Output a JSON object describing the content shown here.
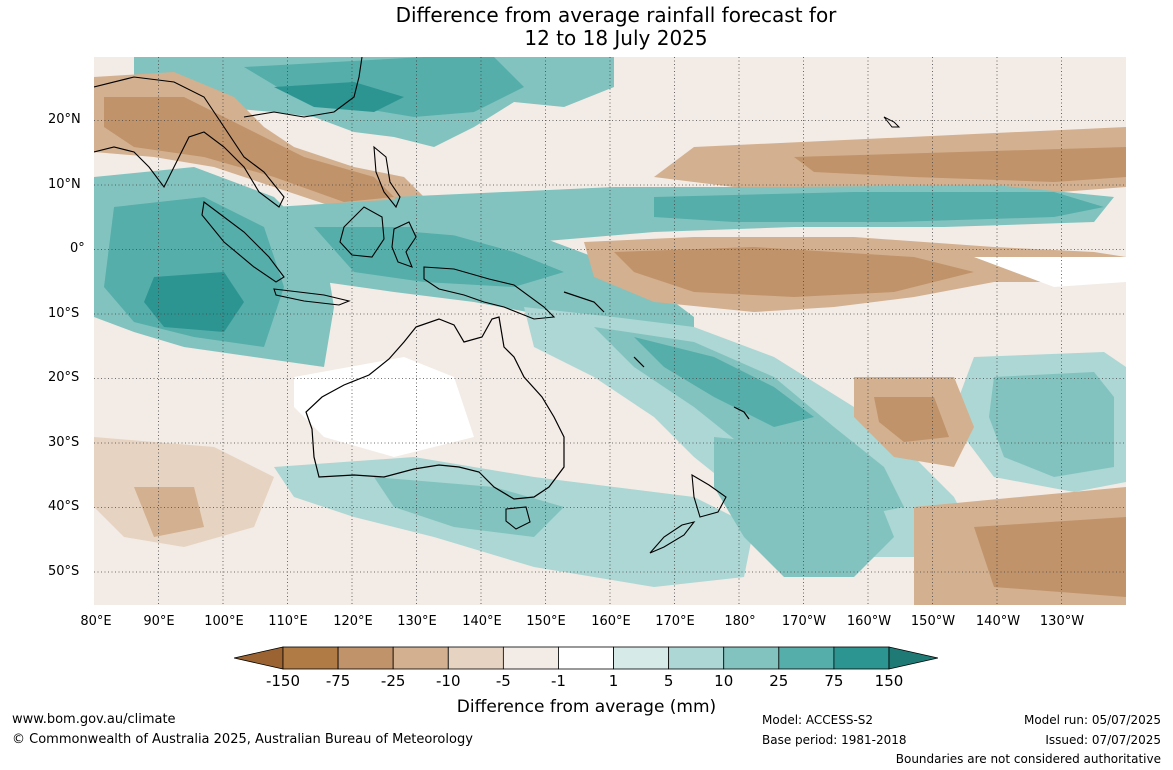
{
  "title": {
    "line1": "Difference from average rainfall forecast for",
    "line2": "12 to 18 July 2025"
  },
  "map": {
    "lat_labels": [
      "20°N",
      "10°N",
      "0°",
      "10°S",
      "20°S",
      "30°S",
      "40°S",
      "50°S"
    ],
    "lon_labels": [
      "80°E",
      "90°E",
      "100°E",
      "110°E",
      "120°E",
      "130°E",
      "140°E",
      "150°E",
      "160°E",
      "170°E",
      "180°",
      "170°W",
      "160°W",
      "150°W",
      "140°W",
      "130°W"
    ],
    "extent": {
      "lon_min": 80,
      "lon_max": 240,
      "lat_min": -55,
      "lat_max": 30
    }
  },
  "legend": {
    "title": "Difference from average (mm)",
    "ticks": [
      "-150",
      "-75",
      "-25",
      "-10",
      "-5",
      "-1",
      "1",
      "5",
      "10",
      "25",
      "75",
      "150"
    ],
    "colors": [
      "#9a6331",
      "#b07b44",
      "#c0936a",
      "#d3b08f",
      "#e6d3c1",
      "#f3ebe5",
      "#ffffff",
      "#d6eae8",
      "#acd7d4",
      "#82c3bf",
      "#55aeaa",
      "#2c9591",
      "#1f7a76"
    ]
  },
  "footer": {
    "url": "www.bom.gov.au/climate",
    "copyright": "© Commonwealth of Australia 2025, Australian Bureau of Meteorology",
    "model": "Model: ACCESS-S2",
    "base_period": "Base period: 1981-2018",
    "model_run": "Model run: 05/07/2025",
    "issued": "Issued: 07/07/2025",
    "disclaimer": "Boundaries are not considered authoritative"
  }
}
